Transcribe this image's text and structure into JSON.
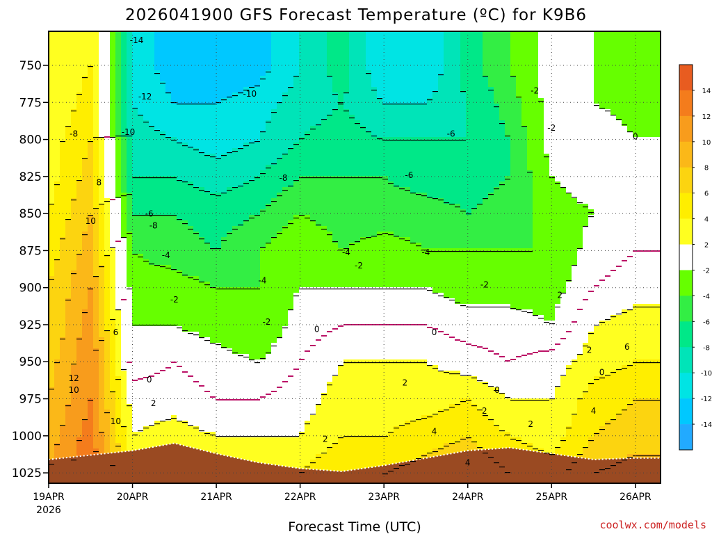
{
  "chart_data": {
    "type": "heatmap",
    "title": "2026041900 GFS Forecast Temperature (ºC) for K9B6",
    "xlabel": "Forecast Time (UTC)",
    "ylabel": "",
    "x_tick_labels": [
      "19APR",
      "20APR",
      "21APR",
      "22APR",
      "23APR",
      "24APR",
      "25APR",
      "26APR"
    ],
    "x_tick_sublabel": "2026",
    "x_range_days": [
      0,
      7.3
    ],
    "y_tick_labels": [
      "750",
      "775",
      "800",
      "825",
      "850",
      "875",
      "900",
      "925",
      "950",
      "975",
      "1000",
      "1025"
    ],
    "y_range_hpa": [
      727,
      1032
    ],
    "colorbar_labels": [
      "14",
      "12",
      "10",
      "8",
      "6",
      "4",
      "2",
      "-2",
      "-4",
      "-6",
      "-8",
      "-10",
      "-12",
      "-14"
    ],
    "colorbar_colors": [
      "#e85c20",
      "#f47c1c",
      "#f89c1c",
      "#fbb818",
      "#fcd410",
      "#ffee00",
      "#ffff20",
      "#ffffff",
      "#66ff00",
      "#33ee44",
      "#00e888",
      "#00e4b8",
      "#00e4e4",
      "#00c8ff",
      "#22aaff"
    ],
    "levels": [
      1025,
      1000,
      975,
      950,
      925,
      900,
      875,
      850,
      825,
      800,
      775,
      750
    ],
    "times": [
      0,
      0.5,
      1,
      1.5,
      2,
      2.5,
      3,
      3.5,
      4,
      4.5,
      5,
      5.5,
      6,
      6.5,
      7
    ],
    "temperatures": [
      [
        10,
        14,
        3,
        4,
        4,
        4,
        4,
        6,
        6,
        7,
        8,
        6,
        5,
        8,
        9
      ],
      [
        9,
        13,
        2,
        3,
        2,
        2,
        2,
        4,
        4,
        5,
        6,
        4,
        3,
        6,
        7
      ],
      [
        8,
        12,
        1,
        1,
        0,
        0,
        1,
        3,
        3,
        3,
        4,
        2,
        2,
        5,
        6
      ],
      [
        7,
        12,
        -1,
        0,
        -1,
        -2,
        0,
        2,
        2,
        2,
        1,
        0,
        1,
        3,
        4
      ],
      [
        6,
        11,
        -2,
        -2,
        -3,
        -4,
        -1,
        0,
        0,
        0,
        -1,
        -1,
        -2,
        2,
        3
      ],
      [
        6,
        10,
        -3,
        -3,
        -4,
        -4,
        -2,
        -2,
        -2,
        -2,
        -3,
        -3,
        -3,
        0,
        1
      ],
      [
        5,
        9,
        -4,
        -5,
        -6,
        -4,
        -2,
        -4,
        -3,
        -4,
        -4,
        -4,
        -4,
        -1,
        0
      ],
      [
        4,
        8,
        -6,
        -6,
        -7,
        -6,
        -4,
        -5,
        -5,
        -5,
        -6,
        -5,
        -3,
        -2,
        -1
      ],
      [
        3,
        7,
        -8,
        -8,
        -9,
        -8,
        -6,
        -6,
        -6,
        -7,
        -7,
        -6,
        -2,
        -1,
        -2
      ],
      [
        3,
        6,
        -9,
        -10,
        -11,
        -10,
        -8,
        -7,
        -8,
        -8,
        -8,
        -6,
        -1,
        0,
        -2
      ],
      [
        2,
        5,
        -10,
        -12,
        -12,
        -11,
        -9,
        -8,
        -10,
        -10,
        -8,
        -5,
        -1,
        -2,
        -3
      ],
      [
        2,
        4,
        -11,
        -13,
        -14,
        -13,
        -10,
        -7,
        -12,
        -12,
        -7,
        -4,
        -1,
        -2,
        -4
      ]
    ],
    "contour_labels": [
      "-14",
      "-12",
      "-10",
      "-10",
      "-8",
      "-8",
      "-8",
      "-6",
      "-6",
      "-6",
      "-4",
      "-4",
      "-4",
      "-4",
      "-2",
      "-2",
      "-2",
      "-2",
      "-2",
      "-2",
      "0",
      "0",
      "0",
      "0",
      "0",
      "0",
      "2",
      "2",
      "2",
      "2",
      "2",
      "2",
      "2",
      "4",
      "4",
      "4",
      "6",
      "6",
      "8",
      "10",
      "10",
      "10",
      "12"
    ],
    "ground_hpa": [
      1016,
      1013,
      1010,
      1005,
      1012,
      1018,
      1022,
      1024,
      1020,
      1015,
      1010,
      1008,
      1012,
      1016,
      1015
    ]
  },
  "credit": "coolwx.com/models",
  "colors": {
    "ground": "#9a4a22",
    "frame": "#000000",
    "zero_contour": "#bb1166"
  }
}
